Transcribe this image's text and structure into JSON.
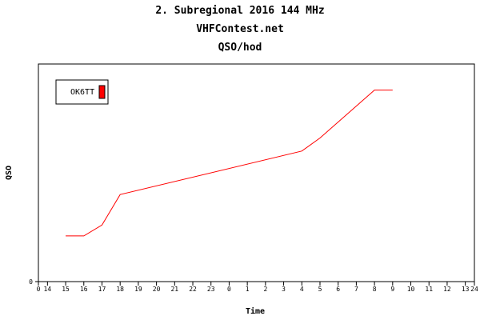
{
  "header": {
    "title_line1": "2. Subregional 2016 144 MHz",
    "title_line2": "VHFContest.net",
    "title_line3": "QSO/hod"
  },
  "chart_data": {
    "type": "line",
    "xlabel": "Time",
    "ylabel": "QSO",
    "x_tick_labels": [
      "0",
      "14",
      "15",
      "16",
      "17",
      "18",
      "19",
      "20",
      "21",
      "22",
      "23",
      "0",
      "1",
      "2",
      "3",
      "4",
      "5",
      "6",
      "7",
      "8",
      "9",
      "10",
      "11",
      "12",
      "13",
      "24"
    ],
    "y_tick_labels": [
      "0"
    ],
    "legend": [
      {
        "name": "OK6TT",
        "color": "#ff0000"
      }
    ],
    "series": [
      {
        "name": "OK6TT",
        "color": "#ff0000",
        "points": [
          {
            "x": 15,
            "y": 21
          },
          {
            "x": 16,
            "y": 21
          },
          {
            "x": 17,
            "y": 26
          },
          {
            "x": 18,
            "y": 40
          },
          {
            "x": 28,
            "y": 60
          },
          {
            "x": 29,
            "y": 66
          },
          {
            "x": 32,
            "y": 88
          },
          {
            "x": 33,
            "y": 88
          }
        ]
      }
    ],
    "xlim": [
      13.5,
      37.5
    ],
    "ylim": [
      0,
      100
    ],
    "grid": false
  }
}
